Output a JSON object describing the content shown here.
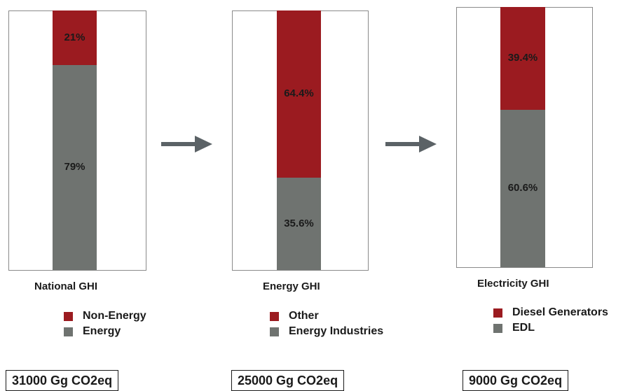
{
  "chart_data": [
    {
      "type": "bar",
      "stacked": true,
      "title": "National GHI",
      "total": "31000 Gg CO2eq",
      "segments": [
        {
          "name": "Non-Energy",
          "value": 21,
          "label": "21%",
          "color": "#9b1b20"
        },
        {
          "name": "Energy",
          "value": 79,
          "label": "79%",
          "color": "#6f7370"
        }
      ]
    },
    {
      "type": "bar",
      "stacked": true,
      "title": "Energy GHI",
      "total": "25000 Gg CO2eq",
      "segments": [
        {
          "name": "Other",
          "value": 64.4,
          "label": "64.4%",
          "color": "#9b1b20"
        },
        {
          "name": "Energy Industries",
          "value": 35.6,
          "label": "35.6%",
          "color": "#6f7370"
        }
      ]
    },
    {
      "type": "bar",
      "stacked": true,
      "title": "Electricity GHI",
      "total": "9000 Gg CO2eq",
      "segments": [
        {
          "name": "Diesel Generators",
          "value": 39.4,
          "label": "39.4%",
          "color": "#9b1b20"
        },
        {
          "name": "EDL",
          "value": 60.6,
          "label": "60.6%",
          "color": "#6f7370"
        }
      ]
    }
  ],
  "arrow_icon": "right-arrow-icon",
  "arrow_color": "#5b6266"
}
